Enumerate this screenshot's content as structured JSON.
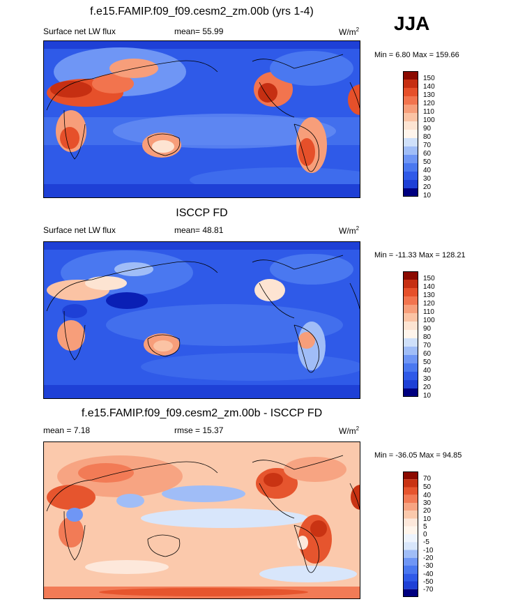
{
  "season": "JJA",
  "panels": [
    {
      "title": "f.e15.FAMIP.f09_f09.cesm2_zm.00b (yrs 1-4)",
      "left_label": "Surface net LW flux",
      "stat_label": "mean=  55.99",
      "units": "W/m",
      "units_sup": "2",
      "minmax": "Min =   6.80 Max = 159.66",
      "colorbar_levels": [
        "150",
        "140",
        "130",
        "120",
        "110",
        "100",
        "90",
        "80",
        "70",
        "60",
        "50",
        "40",
        "30",
        "20",
        "10"
      ]
    },
    {
      "title": "ISCCP FD",
      "left_label": "Surface net LW flux",
      "stat_label": "mean=  48.81",
      "units": "W/m",
      "units_sup": "2",
      "minmax": "Min = -11.33 Max = 128.21",
      "colorbar_levels": [
        "150",
        "140",
        "130",
        "120",
        "110",
        "100",
        "90",
        "80",
        "70",
        "60",
        "50",
        "40",
        "30",
        "20",
        "10"
      ]
    },
    {
      "title": "f.e15.FAMIP.f09_f09.cesm2_zm.00b - ISCCP FD",
      "left_label": "mean =  7.18",
      "stat_label": "rmse =  15.37",
      "units": "W/m",
      "units_sup": "2",
      "minmax": "Min = -36.05 Max =  94.85",
      "colorbar_levels": [
        "70",
        "50",
        "40",
        "30",
        "20",
        "10",
        "5",
        "0",
        "-5",
        "-10",
        "-20",
        "-30",
        "-40",
        "-50",
        "-70"
      ]
    }
  ],
  "chart_data": [
    {
      "type": "heatmap",
      "title": "f.e15.FAMIP.f09_f09.cesm2_zm.00b (yrs 1-4)",
      "variable": "Surface net LW flux",
      "units": "W/m2",
      "mean": 55.99,
      "min": 6.8,
      "max": 159.66,
      "levels": [
        10,
        20,
        30,
        40,
        50,
        60,
        70,
        80,
        90,
        100,
        110,
        120,
        130,
        140,
        150
      ]
    },
    {
      "type": "heatmap",
      "title": "ISCCP FD",
      "variable": "Surface net LW flux",
      "units": "W/m2",
      "mean": 48.81,
      "min": -11.33,
      "max": 128.21,
      "levels": [
        10,
        20,
        30,
        40,
        50,
        60,
        70,
        80,
        90,
        100,
        110,
        120,
        130,
        140,
        150
      ]
    },
    {
      "type": "heatmap",
      "title": "f.e15.FAMIP.f09_f09.cesm2_zm.00b - ISCCP FD",
      "units": "W/m2",
      "mean": 7.18,
      "rmse": 15.37,
      "min": -36.05,
      "max": 94.85,
      "levels": [
        -70,
        -50,
        -40,
        -30,
        -20,
        -10,
        -5,
        0,
        5,
        10,
        20,
        30,
        40,
        50,
        70
      ]
    }
  ],
  "colors": {
    "flux_scale": [
      "#000080",
      "#0a1fb5",
      "#1e40d6",
      "#2f5ae8",
      "#4a78f0",
      "#6f96f5",
      "#a0bdf7",
      "#cfe0fa",
      "#fde4d2",
      "#fbc3a4",
      "#f79e7a",
      "#f2744e",
      "#e6502a",
      "#c62f12",
      "#8b0a00"
    ],
    "diff_scale": [
      "#000080",
      "#0a1fb5",
      "#1e40d6",
      "#2f5ae8",
      "#4a78f0",
      "#6f96f5",
      "#a0bdf7",
      "#d8e6fb",
      "#fde8db",
      "#fbc9ac",
      "#f7a482",
      "#f27b56",
      "#e6552e",
      "#c93313",
      "#8b0a00"
    ]
  }
}
